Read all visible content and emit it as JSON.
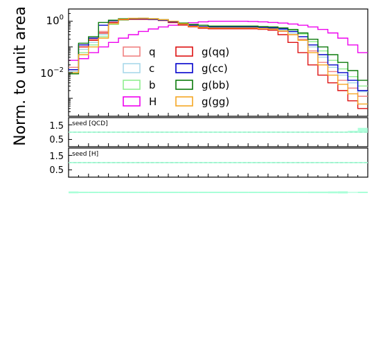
{
  "chart_data": {
    "type": "line",
    "ylabel": "Norm. to unit area",
    "yscale": "log",
    "ylim": [
      0.0002,
      3.0
    ],
    "y_ticks": [
      {
        "value": 1.0,
        "label": "10^0"
      },
      {
        "value": 0.01,
        "label": "10^-2"
      }
    ],
    "n_bins": 30,
    "legend_location": "center",
    "legend_ncol": 2,
    "series": [
      {
        "name": "q",
        "color": "#f08080",
        "values": [
          0.016,
          0.12,
          0.2,
          0.4,
          0.92,
          1.15,
          1.18,
          1.18,
          1.15,
          1.05,
          0.88,
          0.7,
          0.6,
          0.52,
          0.5,
          0.5,
          0.5,
          0.5,
          0.5,
          0.48,
          0.45,
          0.4,
          0.3,
          0.2,
          0.07,
          0.025,
          0.011,
          0.005,
          0.0025,
          0.0012
        ]
      },
      {
        "name": "c",
        "color": "#a8d8ea",
        "values": [
          0.011,
          0.08,
          0.15,
          0.3,
          0.85,
          1.15,
          1.2,
          1.2,
          1.18,
          1.1,
          0.95,
          0.78,
          0.65,
          0.55,
          0.52,
          0.52,
          0.52,
          0.52,
          0.52,
          0.5,
          0.48,
          0.44,
          0.35,
          0.25,
          0.1,
          0.04,
          0.016,
          0.008,
          0.004,
          0.0018
        ]
      },
      {
        "name": "b",
        "color": "#90ee90",
        "values": [
          0.01,
          0.06,
          0.12,
          0.25,
          0.75,
          1.1,
          1.2,
          1.22,
          1.2,
          1.12,
          1.0,
          0.85,
          0.72,
          0.6,
          0.55,
          0.52,
          0.52,
          0.52,
          0.52,
          0.52,
          0.52,
          0.5,
          0.45,
          0.32,
          0.16,
          0.07,
          0.03,
          0.014,
          0.007,
          0.003
        ]
      },
      {
        "name": "H",
        "color": "#ee00ee",
        "values": [
          0.03,
          0.035,
          0.06,
          0.1,
          0.15,
          0.22,
          0.3,
          0.4,
          0.5,
          0.6,
          0.7,
          0.8,
          0.88,
          0.95,
          1.0,
          1.0,
          1.0,
          1.0,
          0.98,
          0.95,
          0.9,
          0.85,
          0.78,
          0.7,
          0.6,
          0.48,
          0.35,
          0.22,
          0.12,
          0.06
        ]
      },
      {
        "name": "g(qq)",
        "color": "#dd1111",
        "values": [
          0.013,
          0.1,
          0.18,
          0.35,
          0.9,
          1.15,
          1.2,
          1.2,
          1.18,
          1.1,
          0.9,
          0.72,
          0.62,
          0.55,
          0.52,
          0.52,
          0.52,
          0.52,
          0.52,
          0.5,
          0.45,
          0.3,
          0.15,
          0.06,
          0.02,
          0.008,
          0.004,
          0.002,
          0.0008,
          0.0004
        ]
      },
      {
        "name": "g(cc)",
        "color": "#0000cc",
        "values": [
          0.013,
          0.12,
          0.22,
          0.7,
          1.05,
          1.2,
          1.25,
          1.25,
          1.2,
          1.1,
          0.95,
          0.8,
          0.7,
          0.62,
          0.6,
          0.6,
          0.6,
          0.6,
          0.6,
          0.58,
          0.55,
          0.5,
          0.4,
          0.25,
          0.12,
          0.05,
          0.02,
          0.01,
          0.005,
          0.002
        ]
      },
      {
        "name": "g(bb)",
        "color": "#0a7a0a",
        "values": [
          0.009,
          0.14,
          0.25,
          0.9,
          1.1,
          1.25,
          1.28,
          1.3,
          1.25,
          1.15,
          1.0,
          0.85,
          0.75,
          0.7,
          0.65,
          0.65,
          0.65,
          0.65,
          0.65,
          0.62,
          0.6,
          0.55,
          0.48,
          0.35,
          0.2,
          0.1,
          0.05,
          0.025,
          0.012,
          0.005
        ]
      },
      {
        "name": "g(gg)",
        "color": "#f5a623",
        "values": [
          0.01,
          0.05,
          0.1,
          0.22,
          0.8,
          1.2,
          1.3,
          1.3,
          1.25,
          1.15,
          1.0,
          0.8,
          0.65,
          0.58,
          0.55,
          0.55,
          0.55,
          0.55,
          0.55,
          0.52,
          0.5,
          0.42,
          0.3,
          0.18,
          0.06,
          0.02,
          0.008,
          0.0035,
          0.0015,
          0.0006
        ]
      }
    ],
    "ratio_panels": [
      {
        "label": "seed [QCD]",
        "ylim": [
          0,
          2.0
        ],
        "y_ticks": [
          "1.5",
          "0.5"
        ],
        "reference": 1.0,
        "ratio": [
          1.0,
          1.0,
          1.0,
          1.0,
          1.0,
          1.0,
          1.0,
          1.0,
          1.0,
          1.0,
          1.0,
          1.0,
          1.0,
          1.0,
          1.0,
          1.0,
          1.0,
          1.0,
          1.0,
          1.0,
          1.0,
          1.0,
          1.0,
          1.0,
          1.0,
          1.0,
          1.0,
          1.0,
          1.05,
          1.25
        ]
      },
      {
        "label": "seed [H]",
        "ylim": [
          0,
          2.0
        ],
        "y_ticks": [
          "1.5",
          "0.5"
        ],
        "reference": 1.0,
        "ratio": [
          1.0,
          1.0,
          1.0,
          1.0,
          1.0,
          1.0,
          1.0,
          1.0,
          1.0,
          1.0,
          1.0,
          1.0,
          1.0,
          1.0,
          1.0,
          1.0,
          1.0,
          1.0,
          1.0,
          1.0,
          1.0,
          1.0,
          1.0,
          1.0,
          1.0,
          1.0,
          1.0,
          1.0,
          1.0,
          1.0
        ]
      }
    ],
    "extra_strip": {
      "color": "#a8ffd8",
      "values": [
        1.3,
        1.0,
        1.0,
        1.0,
        1.0,
        1.0,
        1.0,
        1.0,
        1.0,
        1.0,
        1.0,
        1.0,
        1.0,
        1.0,
        1.0,
        1.0,
        1.0,
        1.0,
        1.0,
        1.0,
        1.0,
        1.0,
        1.0,
        1.0,
        1.1,
        1.1,
        1.3,
        1.5,
        0.6,
        1.0
      ]
    }
  }
}
